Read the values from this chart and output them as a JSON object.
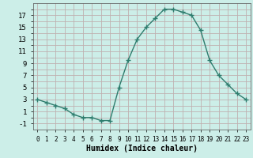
{
  "x": [
    0,
    1,
    2,
    3,
    4,
    5,
    6,
    7,
    8,
    9,
    10,
    11,
    12,
    13,
    14,
    15,
    16,
    17,
    18,
    19,
    20,
    21,
    22,
    23
  ],
  "y": [
    3,
    2.5,
    2.0,
    1.5,
    0.5,
    0.0,
    0.0,
    -0.5,
    -0.5,
    5.0,
    9.5,
    13.0,
    15.0,
    16.5,
    18.0,
    18.0,
    17.5,
    17.0,
    14.5,
    9.5,
    7.0,
    5.5,
    4.0,
    3.0
  ],
  "line_color": "#2e7d6e",
  "marker": "+",
  "markersize": 4,
  "linewidth": 1.0,
  "background_color": "#cceee8",
  "grid_color": "#c0b0b0",
  "xlabel": "Humidex (Indice chaleur)",
  "xlabel_fontsize": 7,
  "ymin": -2,
  "ymax": 19,
  "xmin": -0.5,
  "xmax": 23.5,
  "xtick_labels": [
    "0",
    "1",
    "2",
    "3",
    "4",
    "5",
    "6",
    "7",
    "8",
    "9",
    "10",
    "11",
    "12",
    "13",
    "14",
    "15",
    "16",
    "17",
    "18",
    "19",
    "20",
    "21",
    "22",
    "23"
  ],
  "ytick_labels": [
    "-1",
    "1",
    "3",
    "5",
    "7",
    "9",
    "11",
    "13",
    "15",
    "17"
  ],
  "ytick_values": [
    -1,
    1,
    3,
    5,
    7,
    9,
    11,
    13,
    15,
    17
  ],
  "minor_ytick_values": [
    0,
    2,
    4,
    6,
    8,
    10,
    12,
    14,
    16,
    18
  ]
}
